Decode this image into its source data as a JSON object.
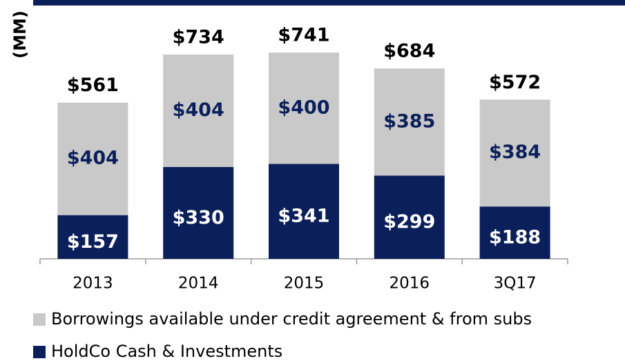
{
  "chart_data": {
    "type": "stacked_bar",
    "y_label": "(MM)",
    "categories": [
      "2013",
      "2014",
      "2015",
      "2016",
      "3Q17"
    ],
    "series": [
      {
        "name": "HoldCo Cash & Investments",
        "color": "#0b1f5a",
        "label_color": "#ffffff",
        "values": [
          157,
          330,
          341,
          299,
          188
        ],
        "value_labels": [
          "$157",
          "$330",
          "$341",
          "$299",
          "$188"
        ]
      },
      {
        "name": "Borrowings available under credit agreement & from subs",
        "color": "#c9c9c9",
        "label_color": "#0b1f5a",
        "values": [
          404,
          404,
          400,
          385,
          384
        ],
        "value_labels": [
          "$404",
          "$404",
          "$400",
          "$385",
          "$384"
        ]
      }
    ],
    "totals": [
      561,
      734,
      741,
      684,
      572
    ],
    "total_labels": [
      "$561",
      "$734",
      "$741",
      "$684",
      "$572"
    ],
    "ylim": [
      0,
      900
    ]
  }
}
